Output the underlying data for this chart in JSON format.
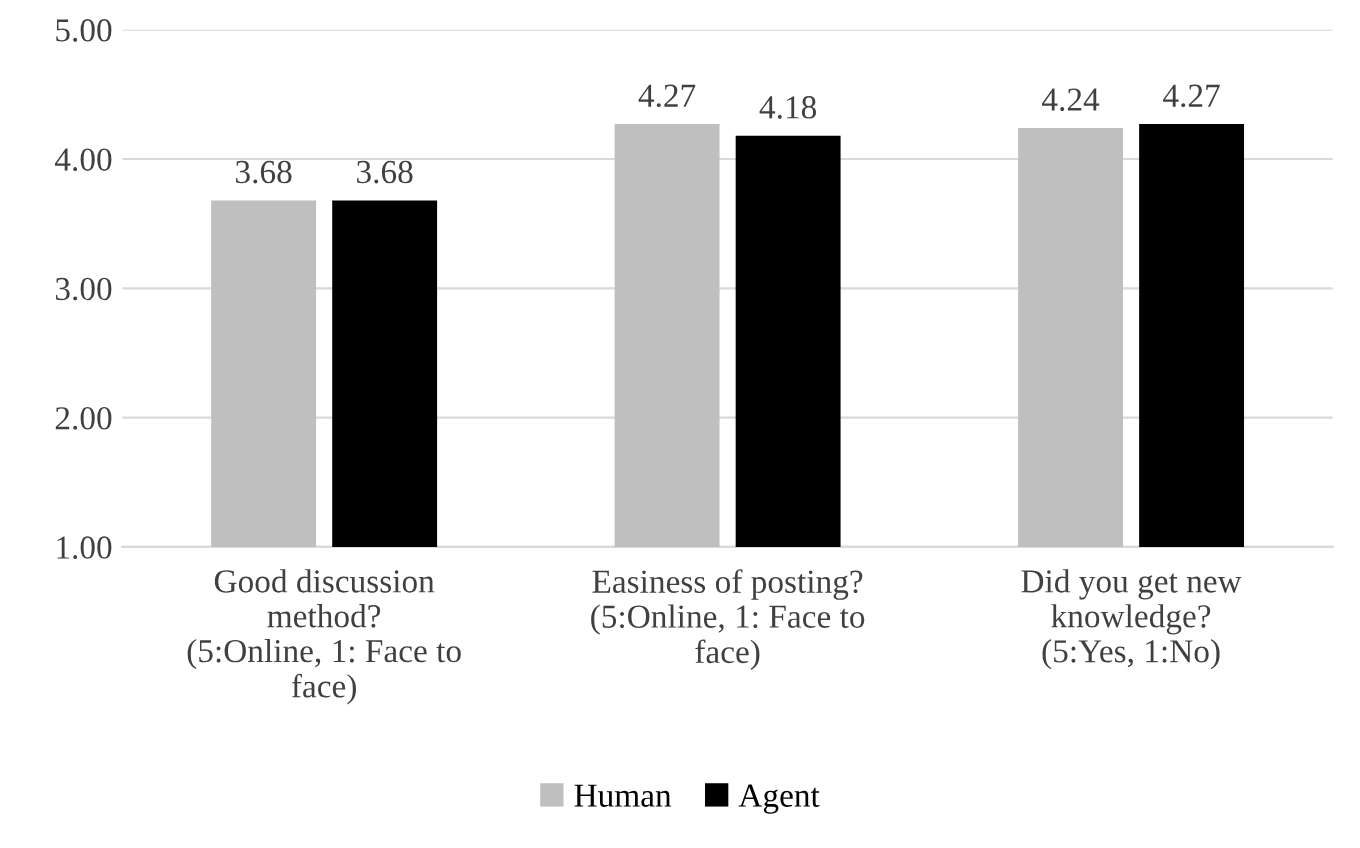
{
  "chart_data": {
    "type": "bar",
    "categories": [
      "Good discussion\nmethod?\n(5:Online, 1: Face to\nface)",
      "Easiness of posting?\n(5:Online, 1: Face to\nface)",
      "Did you get new\nknowledge?\n(5:Yes, 1:No)"
    ],
    "series": [
      {
        "name": "Human",
        "color": "#bfbfbf",
        "values": [
          3.68,
          4.27,
          4.24
        ]
      },
      {
        "name": "Agent",
        "color": "#000000",
        "values": [
          3.68,
          4.18,
          4.27
        ]
      }
    ],
    "ylim": [
      1,
      5
    ],
    "yticks": [
      {
        "value": 1,
        "label": "1.00"
      },
      {
        "value": 2,
        "label": "2.00"
      },
      {
        "value": 3,
        "label": "3.00"
      },
      {
        "value": 4,
        "label": "4.00"
      },
      {
        "value": 5,
        "label": "5.00"
      }
    ],
    "grid": "y",
    "legend": "bottom",
    "data_labels": true
  }
}
